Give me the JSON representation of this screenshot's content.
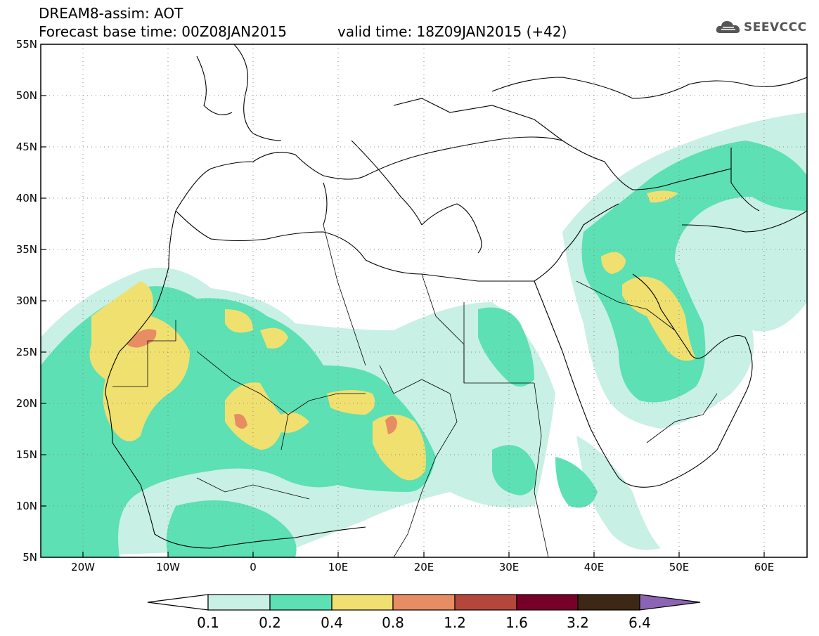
{
  "header": {
    "line1": "DREAM8-assim: AOT",
    "line2": "Forecast base time: 00Z08JAN2015",
    "valid": "valid time: 18Z09JAN2015 (+42)",
    "logo_text": "SEEVCCC",
    "logo_icon": "cloud-logo-icon"
  },
  "map_data": {
    "variable": "AOT",
    "lon_range": [
      -25,
      65
    ],
    "lat_range": [
      5,
      55
    ],
    "lon_ticks": [
      "20W",
      "10W",
      "0",
      "10E",
      "20E",
      "30E",
      "40E",
      "50E",
      "60E"
    ],
    "lat_ticks": [
      "55N",
      "50N",
      "45N",
      "40N",
      "35N",
      "30N",
      "25N",
      "20N",
      "15N",
      "10N",
      "5N"
    ],
    "grid": "dotted"
  },
  "legend": {
    "labels": [
      "0.1",
      "0.2",
      "0.4",
      "0.8",
      "1.2",
      "1.6",
      "3.2",
      "6.4"
    ],
    "colors": [
      "#ffffff",
      "#c8f0e4",
      "#5ce0b4",
      "#f0e070",
      "#e88c64",
      "#b4463c",
      "#780028",
      "#3c2814",
      "#8c64b4"
    ]
  }
}
